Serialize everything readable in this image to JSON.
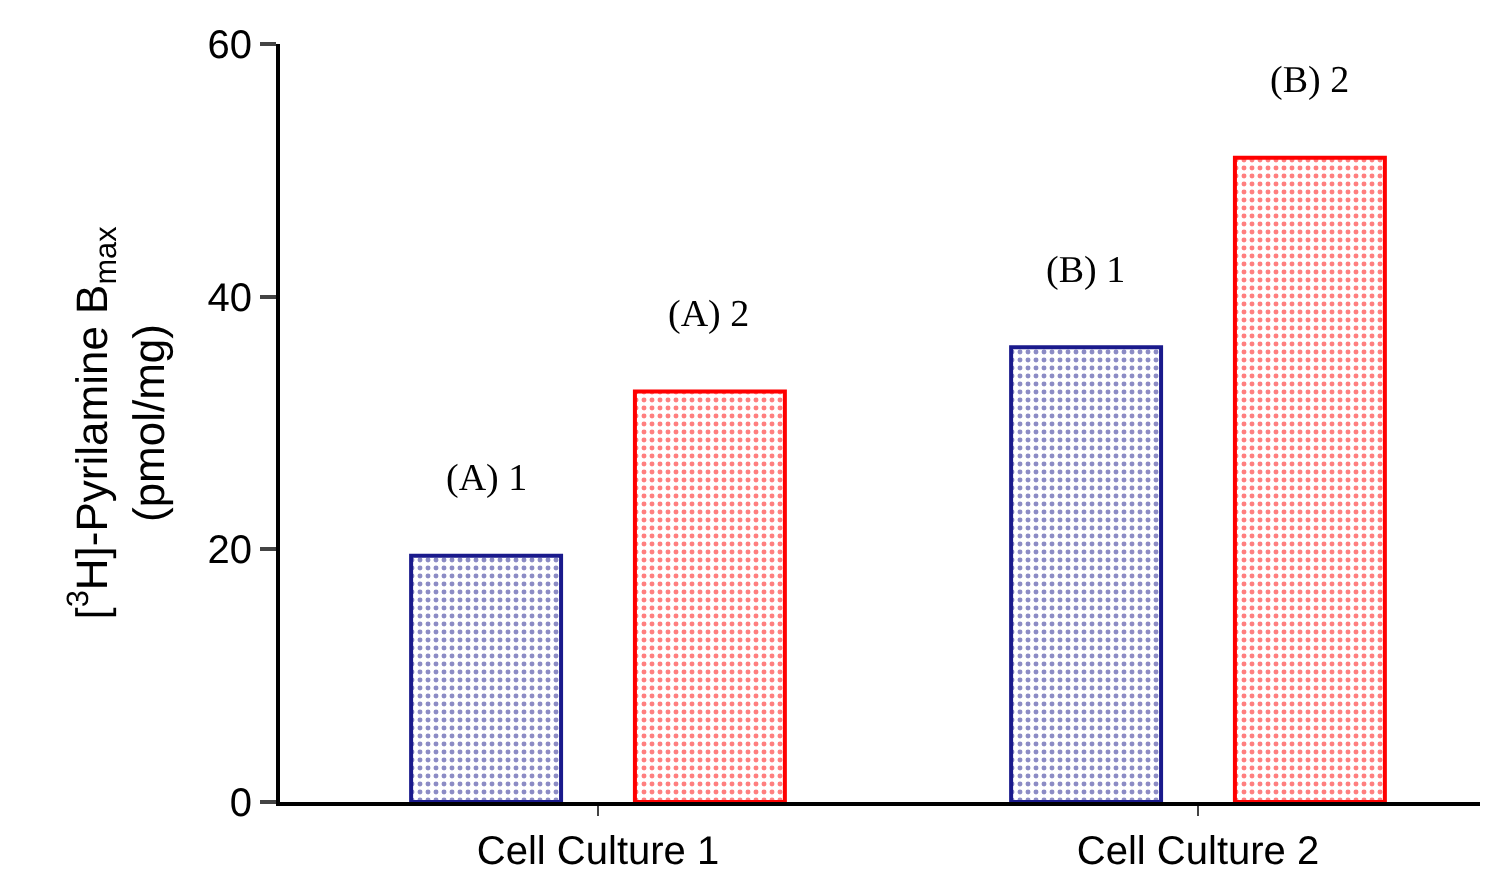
{
  "chart_data": {
    "type": "bar",
    "ylabel": "[$^{3}$H]-Pyrilamine B$_{max}$\n(pmol/mg)",
    "categories": [
      "Cell Culture 1",
      "Cell Culture 2"
    ],
    "series": [
      {
        "color": "#1a1a8c",
        "values": [
          19.5,
          36
        ]
      },
      {
        "color": "#ff0000",
        "values": [
          32.5,
          51
        ]
      }
    ],
    "annotations": [
      "(A) 1",
      "(A) 2",
      "(B) 1",
      "(B) 2"
    ],
    "ylim": [
      0,
      60
    ],
    "yticks": [
      0,
      20,
      40,
      60
    ],
    "legend": false
  }
}
